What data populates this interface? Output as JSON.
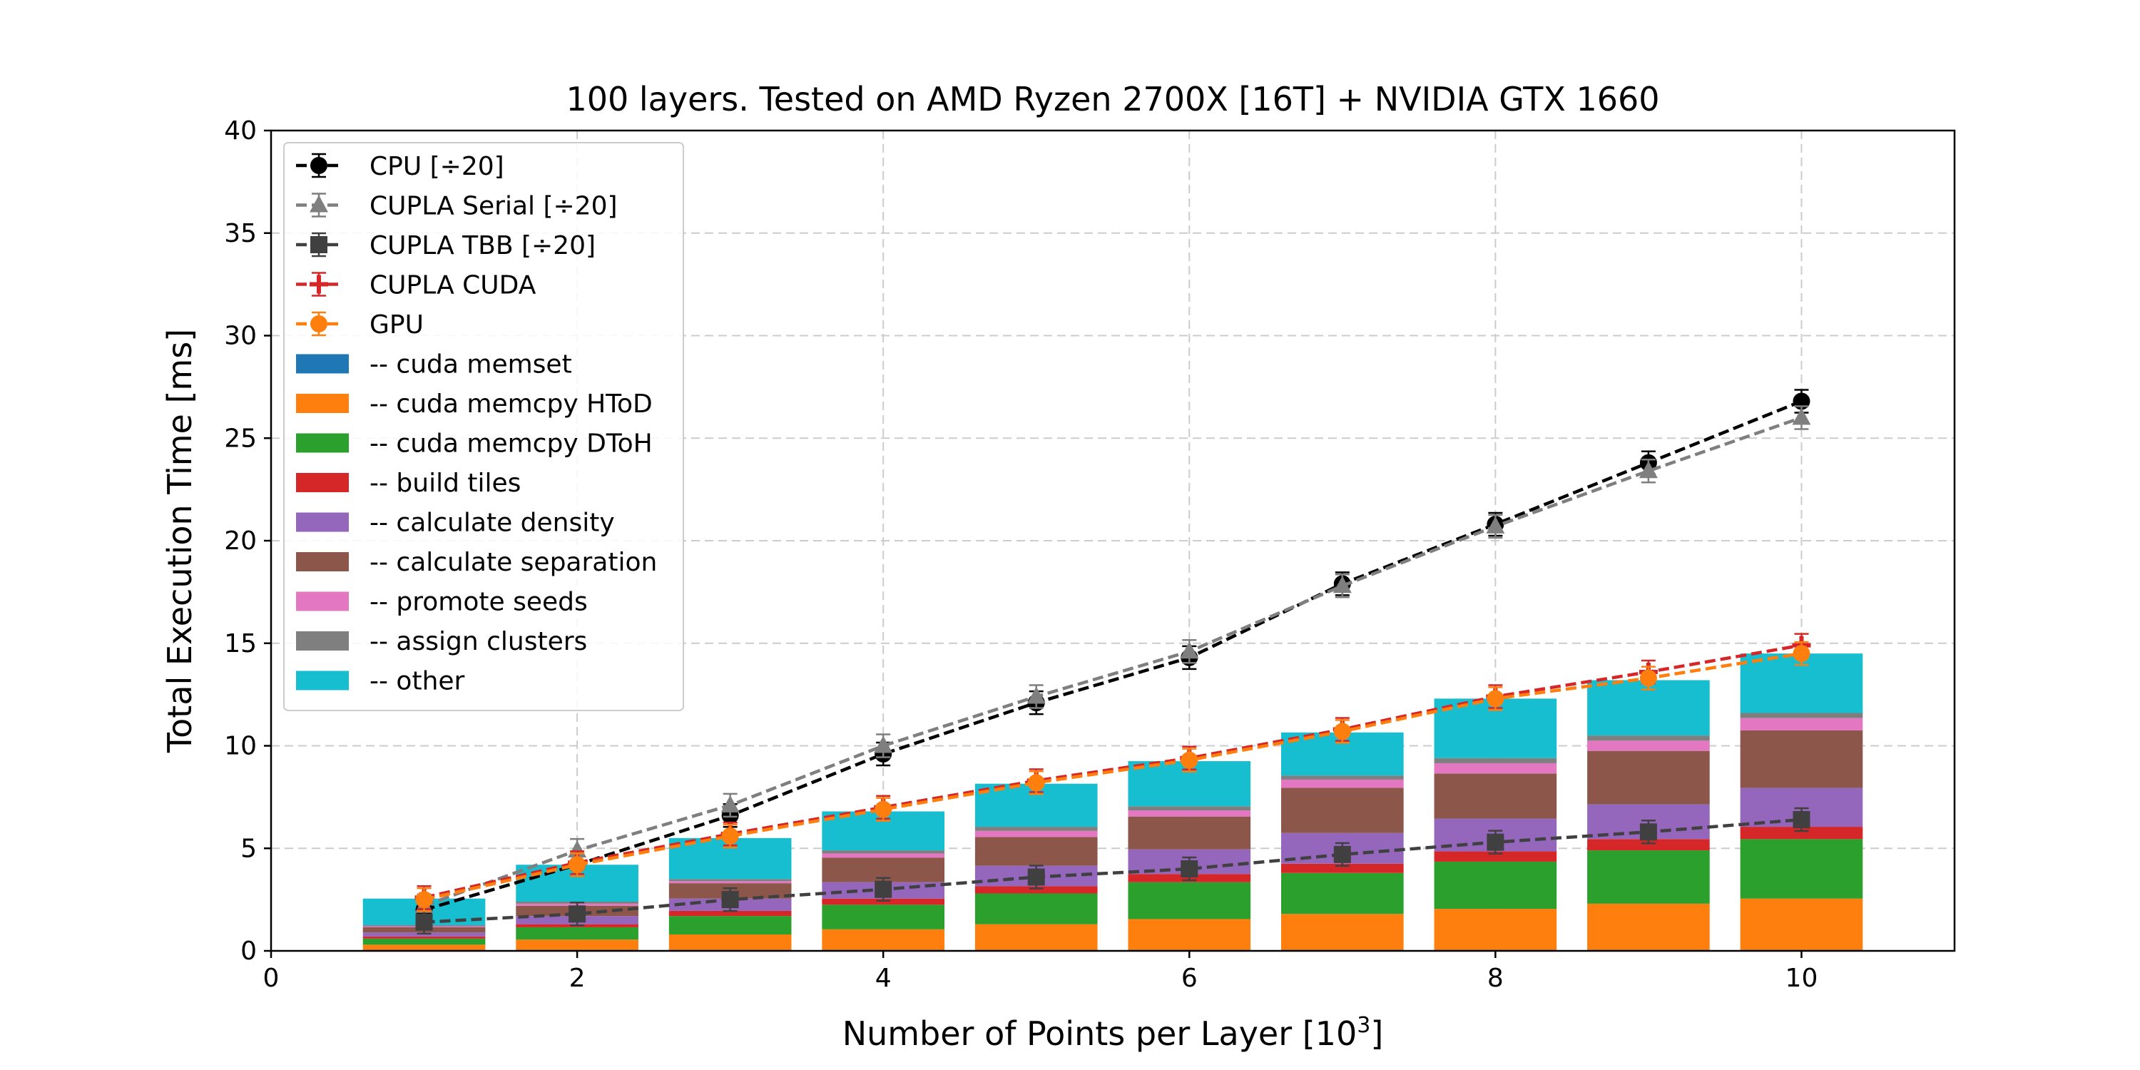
{
  "chart_data": {
    "type": "bar",
    "title": "100 layers. Tested on AMD Ryzen 2700X [16T] + NVIDIA GTX 1660",
    "xlabel": "Number of Points per Layer [10",
    "xlabel_sup": "3",
    "xlabel_end": "]",
    "ylabel": "Total Execution Time [ms]",
    "xlim": [
      0,
      11
    ],
    "ylim": [
      0,
      40
    ],
    "xticks": [
      0,
      2,
      4,
      6,
      8,
      10
    ],
    "yticks": [
      0,
      5,
      10,
      15,
      20,
      25,
      30,
      35,
      40
    ],
    "grid": true,
    "legend_position": "top-left",
    "x": [
      1,
      2,
      3,
      4,
      5,
      6,
      7,
      8,
      9,
      10
    ],
    "stack": [
      {
        "name": "-- cuda memset",
        "color": "#1f77b4",
        "values": [
          0.05,
          0.05,
          0.05,
          0.05,
          0.05,
          0.05,
          0.05,
          0.05,
          0.05,
          0.05
        ]
      },
      {
        "name": "-- cuda memcpy HToD",
        "color": "#ff7f0e",
        "values": [
          0.25,
          0.5,
          0.75,
          1.0,
          1.25,
          1.5,
          1.75,
          2.0,
          2.25,
          2.5
        ]
      },
      {
        "name": "-- cuda memcpy DToH",
        "color": "#2ca02c",
        "values": [
          0.3,
          0.6,
          0.9,
          1.2,
          1.5,
          1.8,
          2.0,
          2.3,
          2.6,
          2.9
        ]
      },
      {
        "name": "-- build tiles",
        "color": "#d62728",
        "values": [
          0.1,
          0.15,
          0.25,
          0.3,
          0.35,
          0.4,
          0.45,
          0.5,
          0.55,
          0.6
        ]
      },
      {
        "name": "-- calculate density",
        "color": "#9467bd",
        "values": [
          0.2,
          0.4,
          0.6,
          0.8,
          1.0,
          1.2,
          1.5,
          1.6,
          1.7,
          1.9
        ]
      },
      {
        "name": "-- calculate separation",
        "color": "#8c564b",
        "values": [
          0.25,
          0.5,
          0.75,
          1.2,
          1.4,
          1.6,
          2.2,
          2.2,
          2.6,
          2.8
        ]
      },
      {
        "name": "-- promote seeds",
        "color": "#e377c2",
        "values": [
          0.05,
          0.1,
          0.1,
          0.2,
          0.3,
          0.3,
          0.4,
          0.5,
          0.5,
          0.6
        ]
      },
      {
        "name": "-- assign clusters",
        "color": "#7f7f7f",
        "values": [
          0.05,
          0.1,
          0.1,
          0.15,
          0.2,
          0.2,
          0.2,
          0.25,
          0.25,
          0.25
        ]
      },
      {
        "name": "-- other",
        "color": "#17becf",
        "values": [
          1.3,
          1.8,
          2.0,
          1.9,
          2.1,
          2.2,
          2.1,
          2.9,
          2.7,
          2.9
        ]
      }
    ],
    "lines": [
      {
        "name": "CPU [÷20]",
        "color": "#000000",
        "marker": "circle",
        "values": [
          2.0,
          4.2,
          6.6,
          9.6,
          12.1,
          14.3,
          17.9,
          20.8,
          23.8,
          26.8
        ]
      },
      {
        "name": "CUPLA Serial [÷20]",
        "color": "#7f7f7f",
        "marker": "triangle",
        "values": [
          2.2,
          4.9,
          7.1,
          10.0,
          12.4,
          14.6,
          17.8,
          20.7,
          23.4,
          26.0
        ]
      },
      {
        "name": "CUPLA TBB [÷20]",
        "color": "#404040",
        "marker": "square",
        "values": [
          1.4,
          1.8,
          2.5,
          3.0,
          3.6,
          4.0,
          4.7,
          5.3,
          5.8,
          6.4
        ]
      },
      {
        "name": "CUPLA CUDA",
        "color": "#d62728",
        "marker": "plus",
        "values": [
          2.6,
          4.3,
          5.7,
          7.0,
          8.3,
          9.4,
          10.8,
          12.4,
          13.6,
          14.9
        ]
      },
      {
        "name": "GPU",
        "color": "#ff7f0e",
        "marker": "circle",
        "values": [
          2.5,
          4.2,
          5.6,
          6.9,
          8.2,
          9.3,
          10.7,
          12.3,
          13.3,
          14.5
        ]
      }
    ]
  }
}
